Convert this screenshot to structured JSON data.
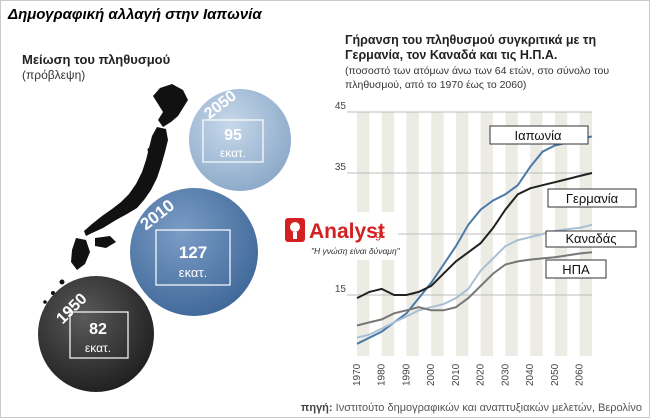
{
  "main_title": "Δημογραφική αλλαγή στην Ιαπωνία",
  "left_panel": {
    "title": "Μείωση του πληθυσμού",
    "subtitle": "(πρόβλεψη)",
    "bubbles": [
      {
        "year": "2050",
        "value": "95",
        "unit": "εκατ.",
        "color": "#a7bfd9"
      },
      {
        "year": "2010",
        "value": "127",
        "unit": "εκατ.",
        "color": "#5e86b4"
      },
      {
        "year": "1950",
        "value": "82",
        "unit": "εκατ.",
        "color": "#3d3d3d"
      }
    ]
  },
  "watermark": {
    "brand": "Analyst",
    "suffix": ".gr",
    "tagline": "\"Η γνώση είναι δύναμη\""
  },
  "footer": {
    "label": "πηγή:",
    "text": "Ινστιτούτο δημογραφικών και αναπτυξιακών μελετών, Βερολίνο"
  },
  "chart_data": {
    "type": "line",
    "title": "Γήρανση του πληθυσμού συγκριτικά με τη Γερμανία, τον Καναδά και τις Η.Π.Α.",
    "subtitle": "(ποσοστό των ατόμων άνω των 64 ετών, στο σύνολο του πληθυσμού, από το 1970 έως το 2060)",
    "x": [
      1970,
      1975,
      1980,
      1985,
      1990,
      1995,
      2000,
      2005,
      2010,
      2015,
      2020,
      2025,
      2030,
      2035,
      2040,
      2045,
      2050,
      2055,
      2060,
      2065
    ],
    "x_ticks": [
      "1970",
      "1980",
      "1990",
      "2000",
      "2010",
      "2020",
      "2030",
      "2040",
      "2050",
      "2060"
    ],
    "y_ticks": [
      "45",
      "35",
      "25",
      "15"
    ],
    "ylim": [
      5,
      45
    ],
    "grid": true,
    "series": [
      {
        "name": "Ιαπωνία",
        "color": "#4a7aa8",
        "values": [
          7.0,
          8.0,
          9.0,
          10.5,
          12.0,
          14.5,
          17.0,
          20.0,
          23.0,
          26.5,
          29.0,
          30.5,
          31.5,
          33.0,
          36.0,
          38.5,
          39.5,
          40.0,
          40.5,
          41.0
        ]
      },
      {
        "name": "Γερμανία",
        "color": "#222222",
        "values": [
          14.5,
          15.5,
          16.0,
          15.0,
          15.0,
          15.5,
          16.5,
          18.5,
          20.5,
          22.0,
          23.5,
          26.0,
          29.0,
          31.5,
          32.5,
          33.0,
          33.5,
          34.0,
          34.5,
          35.0
        ]
      },
      {
        "name": "Καναδάς",
        "color": "#a9bfd3",
        "values": [
          8.0,
          8.5,
          9.5,
          10.5,
          11.5,
          12.5,
          13.0,
          13.5,
          14.5,
          16.0,
          19.0,
          21.0,
          23.0,
          24.0,
          24.5,
          25.0,
          25.5,
          25.8,
          26.0,
          26.5
        ]
      },
      {
        "name": "ΗΠΑ",
        "color": "#777777",
        "values": [
          10.0,
          10.5,
          11.0,
          12.0,
          12.5,
          13.0,
          12.5,
          12.5,
          13.0,
          14.5,
          16.5,
          18.5,
          20.0,
          20.5,
          20.8,
          21.0,
          21.2,
          21.5,
          21.8,
          22.0
        ]
      }
    ]
  }
}
